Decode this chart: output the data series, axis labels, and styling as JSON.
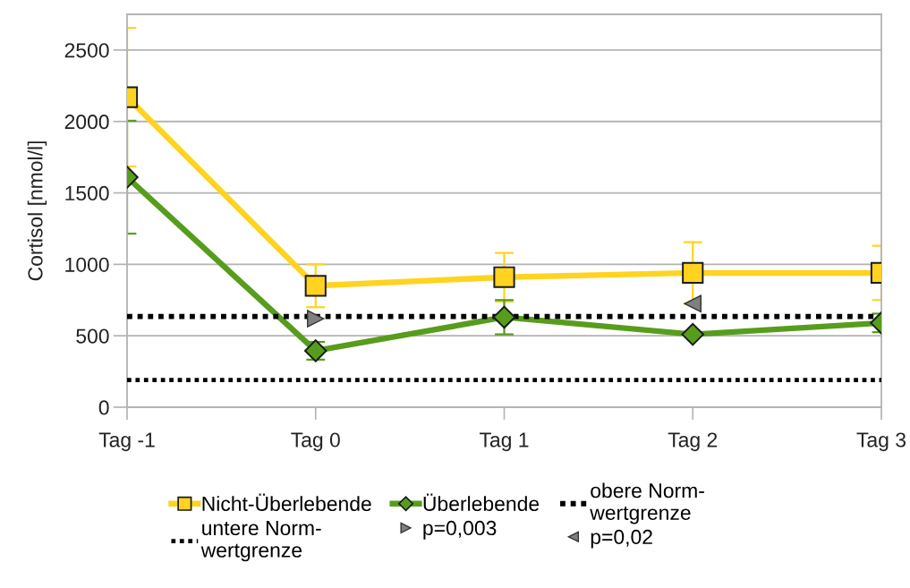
{
  "chart_data": {
    "type": "line",
    "ylabel": "Cortisol [nmol/l]",
    "categories": [
      "Tag -1",
      "Tag 0",
      "Tag 1",
      "Tag 2",
      "Tag 3"
    ],
    "series": [
      {
        "name": "Nicht-Überlebende",
        "color": "#ffd320",
        "marker": "square",
        "values": [
          2170,
          850,
          910,
          940,
          940
        ],
        "errors": [
          485,
          150,
          170,
          215,
          190
        ]
      },
      {
        "name": "Überlebende",
        "color": "#579d1c",
        "marker": "diamond",
        "values": [
          1610,
          395,
          630,
          510,
          590
        ],
        "errors": [
          395,
          62,
          120,
          null,
          65
        ]
      },
      {
        "name": "p=0,003",
        "type": "scatter",
        "color": "#808080",
        "marker": "triangle-right",
        "values": [
          null,
          620,
          null,
          null,
          null
        ]
      },
      {
        "name": "p=0,02",
        "type": "scatter",
        "color": "#808080",
        "marker": "triangle-left",
        "values": [
          null,
          null,
          null,
          725,
          null
        ]
      }
    ],
    "ylim": [
      0,
      2750
    ],
    "yticks": [
      0,
      500,
      1000,
      1500,
      2000,
      2500
    ],
    "grid": "y",
    "legend": "bottom",
    "ref_lines": [
      {
        "axis": "y",
        "value": 635,
        "label": "obere Norm-\nwertgrenze",
        "color": "#000000",
        "line_style": "dotted"
      },
      {
        "axis": "y",
        "value": 190,
        "label": "untere Norm-\nwertgrenze",
        "color": "#000000",
        "line_style": "dotted"
      }
    ]
  }
}
